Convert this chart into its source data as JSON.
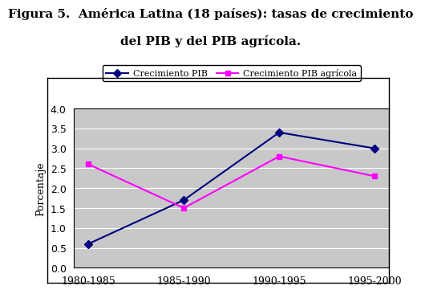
{
  "title_line1": "Figura 5.  América Latina (18 países): tasas de crecimiento",
  "title_line2": "del PIB y del PIB agrícola.",
  "ylabel": "Porcentaje",
  "categories": [
    "1980-1985",
    "1985-1990",
    "1990-1995",
    "1995-2000"
  ],
  "pib": [
    0.6,
    1.7,
    3.4,
    3.0
  ],
  "pib_agricola": [
    2.6,
    1.5,
    2.8,
    2.3
  ],
  "pib_color": "#000080",
  "pib_agricola_color": "#FF00FF",
  "ylim": [
    0.0,
    4.0
  ],
  "yticks": [
    0.0,
    0.5,
    1.0,
    1.5,
    2.0,
    2.5,
    3.0,
    3.5,
    4.0
  ],
  "legend_pib": "Crecimiento PIB",
  "legend_pib_agricola": "Crecimiento PIB agrícola",
  "fig_bg_color": "#FFFFFF",
  "plot_bg_color": "#C8C8C8",
  "title_fontsize": 11,
  "axis_fontsize": 9,
  "tick_fontsize": 9,
  "legend_fontsize": 8
}
